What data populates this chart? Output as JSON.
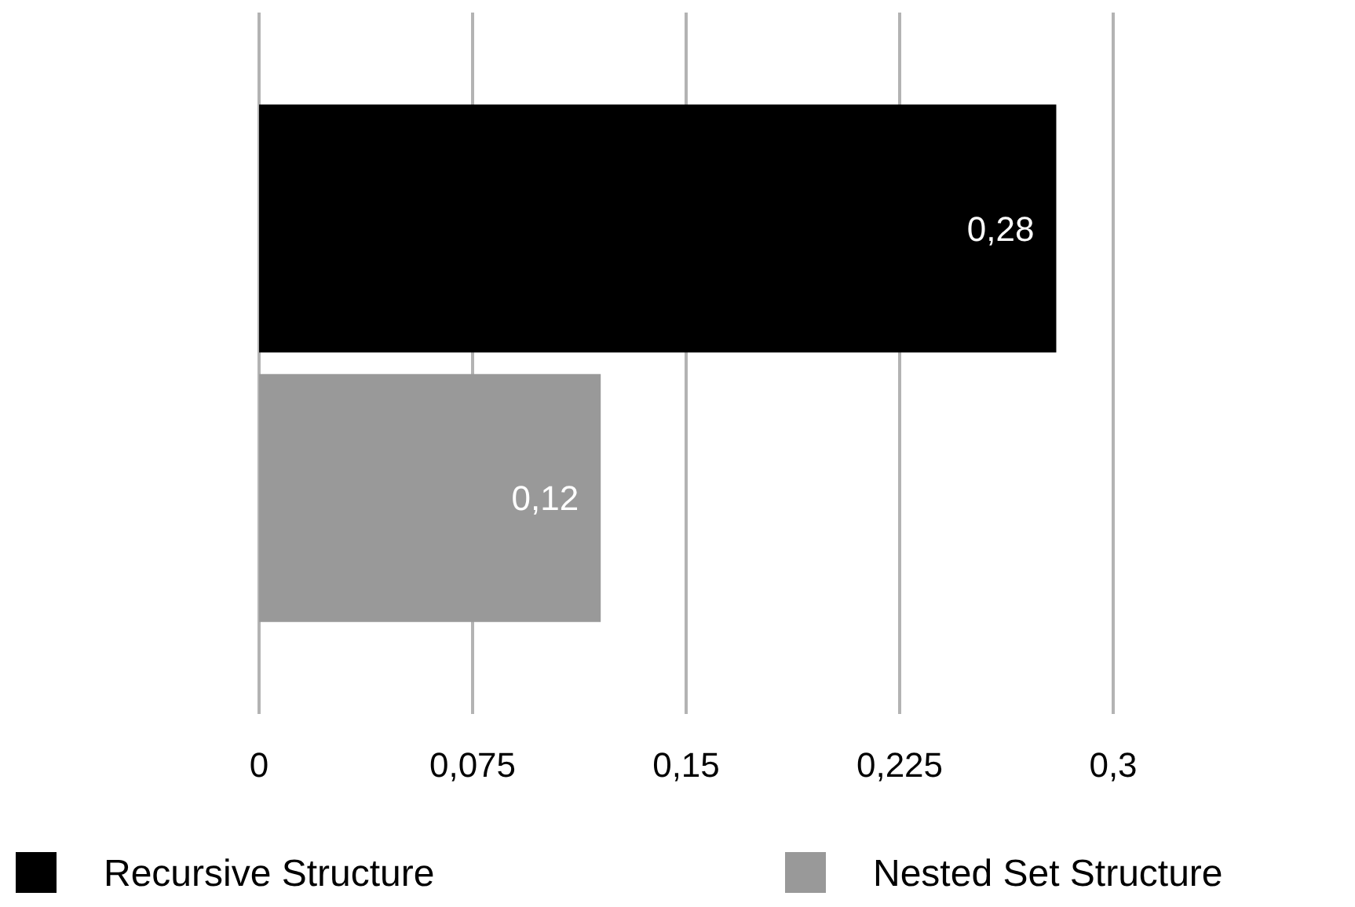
{
  "chart_data": {
    "type": "bar",
    "orientation": "horizontal",
    "categories": [
      null
    ],
    "series": [
      {
        "name": "Recursive Structure",
        "color": "#000000",
        "values": [
          0.28
        ],
        "value_labels": [
          "0,28"
        ]
      },
      {
        "name": "Nested Set Structure",
        "color": "#999999",
        "values": [
          0.12
        ],
        "value_labels": [
          "0,12"
        ]
      }
    ],
    "xlim": [
      0,
      0.3
    ],
    "xticks": [
      0,
      {
        "value": 0.075,
        "label": "0,075"
      },
      {
        "value": 0.15,
        "label": "0,15"
      },
      {
        "value": 0.225,
        "label": "0,225"
      },
      {
        "value": 0.3,
        "label": "0,3"
      }
    ],
    "grid": "x",
    "legend": "bottom"
  }
}
